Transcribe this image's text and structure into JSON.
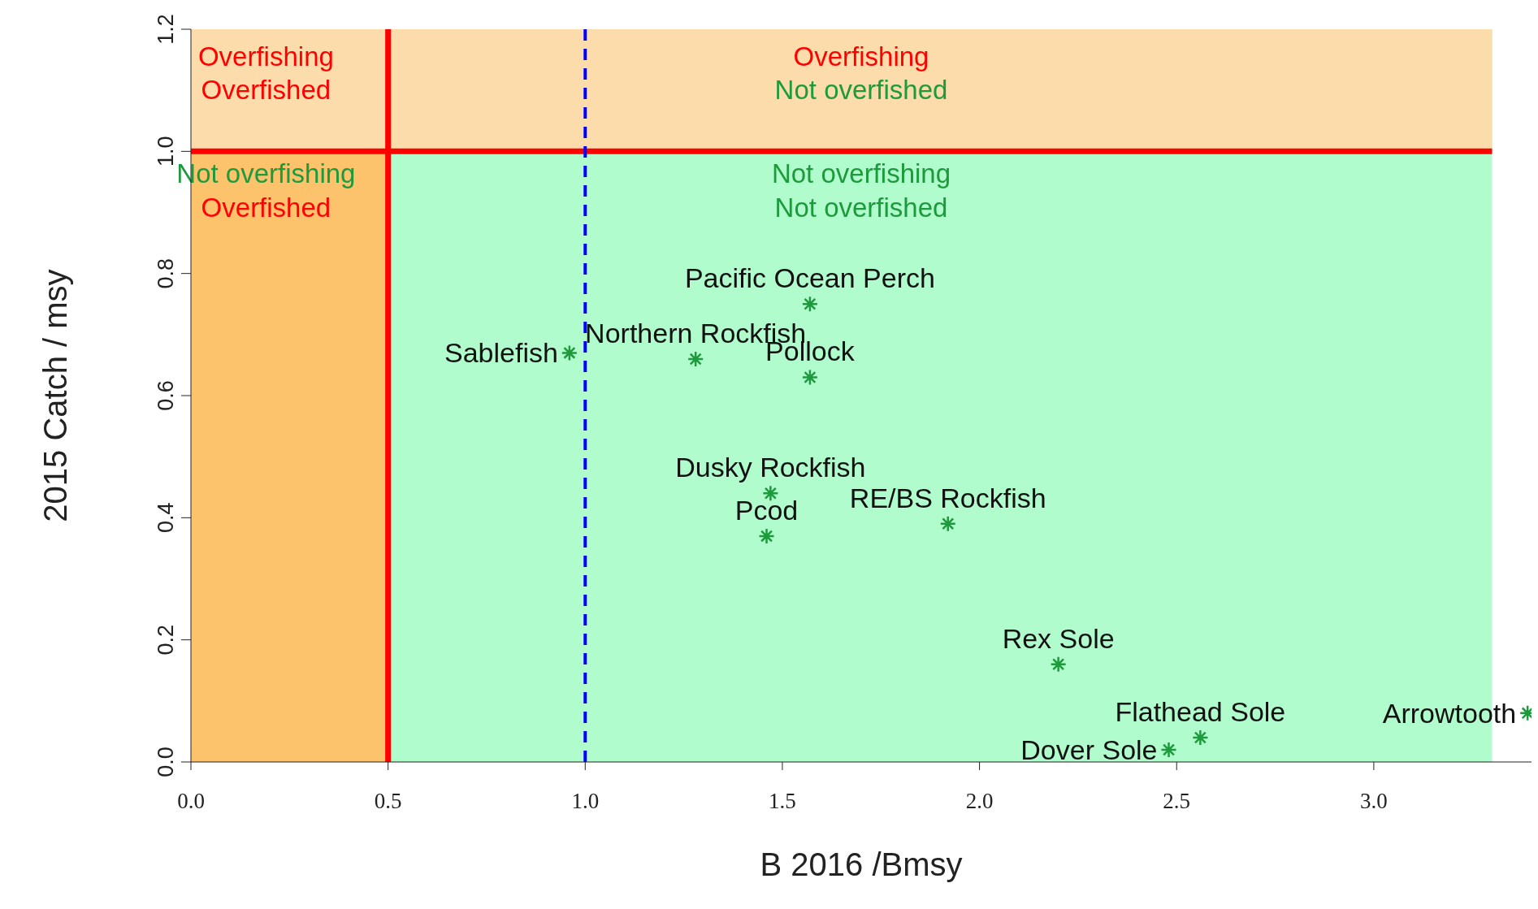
{
  "chart_data": {
    "type": "scatter",
    "xlabel": "B 2016 /Bmsy",
    "ylabel": "2015 Catch / msy",
    "x": [
      0.96,
      1.28,
      1.57,
      1.57,
      1.47,
      1.46,
      1.92,
      2.2,
      2.56,
      2.48,
      3.39
    ],
    "series": [
      {
        "color": "#1c9a3c",
        "values": [
          0.67,
          0.66,
          0.75,
          0.63,
          0.44,
          0.37,
          0.39,
          0.16,
          0.04,
          0.02,
          0.08
        ]
      }
    ],
    "marker": "cross",
    "xlim": [
      0,
      3.4
    ],
    "ylim": [
      0,
      1.2
    ],
    "xticks": [
      {
        "value": 0,
        "label": "0.0"
      },
      0.5,
      {
        "value": 1,
        "label": "1.0"
      },
      1.5,
      {
        "value": 2,
        "label": "2.0"
      },
      2.5,
      {
        "value": 3,
        "label": "3.0"
      }
    ],
    "yticks": [
      {
        "value": 0,
        "label": "0.0"
      },
      0.2,
      0.4,
      0.6,
      0.8,
      {
        "value": 1,
        "label": "1.0"
      },
      1.2
    ],
    "bands": [
      {
        "axis": "x",
        "from": 0,
        "to": 0.5,
        "color": "#fcc36c"
      },
      {
        "axis": "x",
        "from": 0.5,
        "to": 3.3,
        "color": "#b1fccd"
      },
      {
        "axis": "y",
        "from": 1,
        "to": 1.2,
        "color": "#fddcab"
      }
    ],
    "ref_lines": [
      {
        "axis": "x",
        "value": 0.5,
        "color": "#ff0000",
        "line_style": "solid"
      },
      {
        "axis": "y",
        "value": 1,
        "color": "#ff0000",
        "line_style": "solid"
      },
      {
        "axis": "x",
        "value": 1,
        "color": "#0000ff",
        "line_style": "dashed"
      }
    ],
    "annotations": [
      "Overfishing",
      "Overfished",
      "Overfishing",
      "Not overfished",
      "Not overfishing",
      "Overfished",
      "Not overfishing",
      "Not overfished",
      {
        "text": "Sablefish",
        "x": 0.96,
        "y": 0.67
      },
      {
        "text": "Northern Rockfish",
        "x": 1.28,
        "y": 0.66
      },
      {
        "text": "Pacific Ocean Perch",
        "x": 1.57,
        "y": 0.75
      },
      {
        "text": "Pollock",
        "x": 1.57,
        "y": 0.63
      },
      {
        "text": "Dusky Rockfish",
        "x": 1.47,
        "y": 0.44
      },
      {
        "text": "Pcod",
        "x": 1.46,
        "y": 0.37
      },
      {
        "text": "RE/BS Rockfish",
        "x": 1.92,
        "y": 0.39
      },
      {
        "text": "Rex Sole",
        "x": 2.2,
        "y": 0.16
      },
      {
        "text": "Flathead Sole",
        "x": 2.56,
        "y": 0.04
      },
      {
        "text": "Dover Sole",
        "x": 2.48,
        "y": 0.02
      },
      {
        "text": "Arrowtooth",
        "x": 3.39,
        "y": 0.08
      }
    ]
  }
}
